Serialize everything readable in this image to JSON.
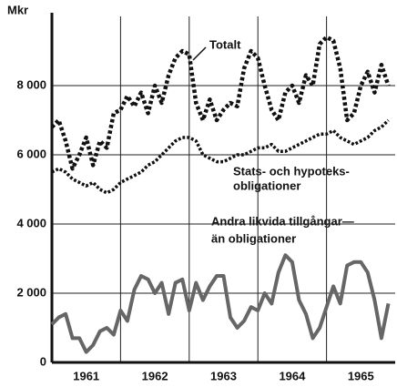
{
  "chart_data": {
    "type": "line",
    "ylabel": "Mkr",
    "x": [
      1961.0,
      1961.1,
      1961.2,
      1961.3,
      1961.4,
      1961.5,
      1961.6,
      1961.7,
      1961.8,
      1961.9,
      1962.0,
      1962.1,
      1962.2,
      1962.3,
      1962.4,
      1962.5,
      1962.6,
      1962.7,
      1962.8,
      1962.9,
      1963.0,
      1963.1,
      1963.2,
      1963.3,
      1963.4,
      1963.5,
      1963.6,
      1963.7,
      1963.8,
      1963.9,
      1964.0,
      1964.1,
      1964.2,
      1964.3,
      1964.4,
      1964.5,
      1964.6,
      1964.7,
      1964.8,
      1964.9,
      1965.0,
      1965.1,
      1965.2,
      1965.3,
      1965.4,
      1965.5,
      1965.6,
      1965.7,
      1965.8,
      1965.9
    ],
    "xlim": [
      1961,
      1966
    ],
    "xticks": [
      {
        "value": 1961.5,
        "label": "1961"
      },
      {
        "value": 1962.5,
        "label": "1962"
      },
      {
        "value": 1963.5,
        "label": "1963"
      },
      {
        "value": 1964.5,
        "label": "1964"
      },
      {
        "value": 1965.5,
        "label": "1965"
      }
    ],
    "xgrid": [
      1962,
      1963,
      1964,
      1965
    ],
    "ylim": [
      0,
      10000
    ],
    "yticks": [
      0,
      {
        "value": 2000,
        "label": "2 000"
      },
      {
        "value": 4000,
        "label": "4 000"
      },
      {
        "value": 6000,
        "label": "6 000"
      },
      {
        "value": 8000,
        "label": "8 000"
      }
    ],
    "grid": true,
    "series": [
      {
        "name": "Totalt",
        "color": "#111111",
        "style": "dotted",
        "width": 4.5,
        "values": [
          6800,
          7000,
          6400,
          5600,
          6000,
          6500,
          5700,
          6400,
          6200,
          7200,
          7300,
          7700,
          7400,
          7800,
          7200,
          8000,
          7500,
          8300,
          8800,
          9000,
          8900,
          7500,
          7000,
          7600,
          7000,
          7300,
          7500,
          7400,
          8500,
          9000,
          8800,
          8000,
          7300,
          7000,
          7800,
          8000,
          7500,
          8300,
          8000,
          9200,
          9400,
          9300,
          8500,
          7000,
          7200,
          8000,
          8400,
          7800,
          8600,
          8000
        ]
      },
      {
        "name": "Stats- och hypoteks-obligationer",
        "color": "#111111",
        "style": "dotted",
        "width": 3.5,
        "values": [
          5500,
          5600,
          5500,
          5300,
          5200,
          5100,
          5200,
          5000,
          4900,
          5000,
          5200,
          5300,
          5400,
          5500,
          5700,
          5800,
          6000,
          6200,
          6400,
          6500,
          6500,
          6400,
          6000,
          5900,
          5800,
          5800,
          5900,
          6000,
          6000,
          6100,
          6200,
          6200,
          6300,
          6100,
          6100,
          6200,
          6300,
          6400,
          6500,
          6600,
          6600,
          6700,
          6500,
          6400,
          6300,
          6400,
          6500,
          6700,
          6800,
          7000
        ]
      },
      {
        "name": "Andra likvida tillgångar än obligationer",
        "color": "#666666",
        "style": "solid",
        "width": 4,
        "values": [
          1100,
          1300,
          1400,
          700,
          700,
          300,
          500,
          900,
          1000,
          800,
          1500,
          1200,
          2100,
          2500,
          2400,
          2000,
          2300,
          1400,
          2300,
          2400,
          1500,
          2300,
          1800,
          2200,
          2500,
          2500,
          1300,
          1000,
          1200,
          1600,
          1500,
          2000,
          1700,
          2600,
          3100,
          2900,
          1800,
          1400,
          700,
          1000,
          1600,
          2200,
          1700,
          2800,
          2900,
          2900,
          2600,
          1800,
          700,
          1700
        ]
      }
    ],
    "annotations": [
      "Totalt",
      "Stats- och hypoteks-",
      "obligationer",
      "Andra likvida tillgångar—",
      "än obligationer"
    ]
  }
}
